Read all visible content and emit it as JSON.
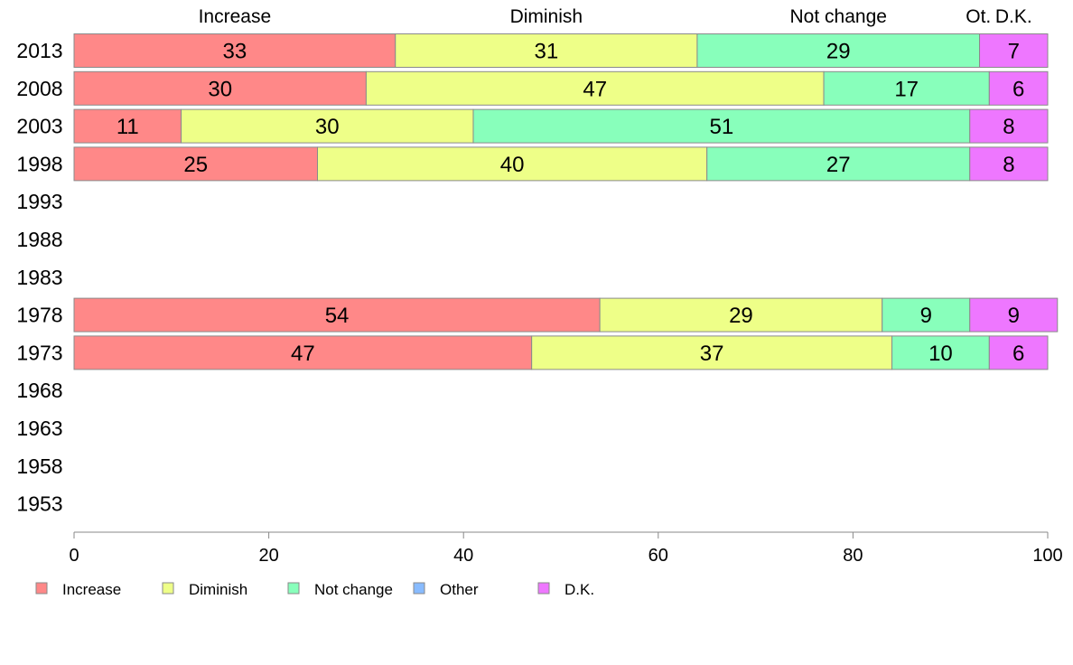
{
  "chart_data": {
    "type": "bar",
    "orientation": "horizontal",
    "stacked": true,
    "categories": [
      "2013",
      "2008",
      "2003",
      "1998",
      "1993",
      "1988",
      "1983",
      "1978",
      "1973",
      "1968",
      "1963",
      "1958",
      "1953"
    ],
    "series": [
      {
        "name": "Increase",
        "color": "#ff8888",
        "values": [
          33,
          30,
          11,
          25,
          null,
          null,
          null,
          54,
          47,
          null,
          null,
          null,
          null
        ]
      },
      {
        "name": "Diminish",
        "color": "#eeff88",
        "values": [
          31,
          47,
          30,
          40,
          null,
          null,
          null,
          29,
          37,
          null,
          null,
          null,
          null
        ]
      },
      {
        "name": "Not change",
        "color": "#88ffbb",
        "values": [
          29,
          17,
          51,
          27,
          null,
          null,
          null,
          9,
          10,
          null,
          null,
          null,
          null
        ]
      },
      {
        "name": "Other",
        "color": "#88bbff",
        "values": [
          0,
          0,
          0,
          0,
          null,
          null,
          null,
          0,
          0,
          null,
          null,
          null,
          null
        ]
      },
      {
        "name": "D.K.",
        "color": "#ee77ff",
        "values": [
          7,
          6,
          8,
          8,
          null,
          null,
          null,
          9,
          6,
          null,
          null,
          null,
          null
        ]
      }
    ],
    "top_labels": [
      "Increase",
      "Diminish",
      "Not change",
      "Ot.",
      "D.K."
    ],
    "xlim": [
      0,
      100
    ],
    "xticks": [
      0,
      20,
      40,
      60,
      80,
      100
    ],
    "grid": false,
    "legend_position": "bottom",
    "data_labels": true
  }
}
